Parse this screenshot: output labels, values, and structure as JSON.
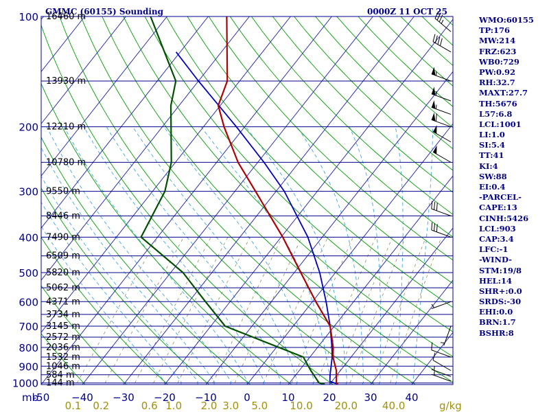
{
  "chart_data": {
    "type": "skew-t",
    "title_left": "GMMC (60155) Sounding",
    "title_right": "0000Z 11 OCT 25",
    "pressure_axis_label": "mb",
    "mixing_ratio_unit": "g/kg",
    "pressure_ticks": [
      100,
      200,
      300,
      400,
      500,
      600,
      700,
      800,
      900,
      1000
    ],
    "temperature_ticks": [
      -50,
      -40,
      -30,
      -20,
      -10,
      0,
      10,
      20,
      30,
      40
    ],
    "temperature_tick_labels": [
      "-50",
      "−40",
      "−30",
      "−20",
      "−10",
      "0",
      "10",
      "20",
      "30",
      "40"
    ],
    "mixing_ratio_labels": [
      "0.1",
      "0.2",
      "0.6",
      "1.0",
      "2.0",
      "3.0",
      "5.0",
      "10.0",
      "20.0",
      "40.0"
    ],
    "height_labels": [
      {
        "p": 100,
        "label": "16460 m"
      },
      {
        "p": 150,
        "label": "13930 m"
      },
      {
        "p": 200,
        "label": "12210 m"
      },
      {
        "p": 250,
        "label": "10780 m"
      },
      {
        "p": 300,
        "label": "9550 m"
      },
      {
        "p": 350,
        "label": "8446 m"
      },
      {
        "p": 400,
        "label": "7490 m"
      },
      {
        "p": 450,
        "label": "6509 m"
      },
      {
        "p": 500,
        "label": "5820 m"
      },
      {
        "p": 550,
        "label": "5062 m"
      },
      {
        "p": 600,
        "label": "4371 m"
      },
      {
        "p": 650,
        "label": "3734 m"
      },
      {
        "p": 700,
        "label": "3145 m"
      },
      {
        "p": 750,
        "label": "2572 m"
      },
      {
        "p": 800,
        "label": "2036 m"
      },
      {
        "p": 850,
        "label": "1532 m"
      },
      {
        "p": 900,
        "label": "1046 m"
      },
      {
        "p": 950,
        "label": "584 m"
      },
      {
        "p": 1000,
        "label": "144 m"
      }
    ],
    "temperature_profile": [
      {
        "p": 1008,
        "t": 22.0
      },
      {
        "p": 1000,
        "t": 21.4
      },
      {
        "p": 925,
        "t": 19.0
      },
      {
        "p": 850,
        "t": 15.6
      },
      {
        "p": 800,
        "t": 13.8
      },
      {
        "p": 700,
        "t": 9.0
      },
      {
        "p": 600,
        "t": 0.8
      },
      {
        "p": 500,
        "t": -8.4
      },
      {
        "p": 400,
        "t": -19.6
      },
      {
        "p": 300,
        "t": -35.0
      },
      {
        "p": 250,
        "t": -44.8
      },
      {
        "p": 200,
        "t": -55.0
      },
      {
        "p": 175,
        "t": -60.5
      },
      {
        "p": 150,
        "t": -63.0
      },
      {
        "p": 100,
        "t": -75.5
      }
    ],
    "dewpoint_profile": [
      {
        "p": 1008,
        "t": 18.8
      },
      {
        "p": 1000,
        "t": 17.2
      },
      {
        "p": 925,
        "t": 12.8
      },
      {
        "p": 850,
        "t": 8.4
      },
      {
        "p": 700,
        "t": -16.5
      },
      {
        "p": 600,
        "t": -26.0
      },
      {
        "p": 500,
        "t": -37.0
      },
      {
        "p": 400,
        "t": -54.0
      },
      {
        "p": 300,
        "t": -57.0
      },
      {
        "p": 250,
        "t": -61.0
      },
      {
        "p": 175,
        "t": -72.0
      },
      {
        "p": 150,
        "t": -75.5
      },
      {
        "p": 100,
        "t": -94.0
      }
    ],
    "parcel_path": [
      {
        "p": 1008,
        "t": 22.0
      },
      {
        "p": 990,
        "t": 19.5
      },
      {
        "p": 950,
        "t": 18.3
      },
      {
        "p": 900,
        "t": 16.9
      },
      {
        "p": 850,
        "t": 15.4
      },
      {
        "p": 800,
        "t": 13.5
      },
      {
        "p": 700,
        "t": 9.0
      },
      {
        "p": 600,
        "t": 3.3
      },
      {
        "p": 500,
        "t": -3.8
      },
      {
        "p": 400,
        "t": -13.5
      },
      {
        "p": 300,
        "t": -28.0
      },
      {
        "p": 250,
        "t": -38.5
      },
      {
        "p": 200,
        "t": -52.0
      },
      {
        "p": 150,
        "t": -70.0
      },
      {
        "p": 125,
        "t": -81.0
      }
    ],
    "wind_barbs": [
      {
        "p": 990,
        "dir": 290,
        "kt": 5
      },
      {
        "p": 960,
        "dir": 290,
        "kt": 5
      },
      {
        "p": 925,
        "dir": 300,
        "kt": 10
      },
      {
        "p": 850,
        "dir": 290,
        "kt": 10
      },
      {
        "p": 700,
        "dir": 200,
        "kt": 5
      },
      {
        "p": 600,
        "dir": 250,
        "kt": 5
      },
      {
        "p": 400,
        "dir": 290,
        "kt": 30
      },
      {
        "p": 350,
        "dir": 290,
        "kt": 30
      },
      {
        "p": 250,
        "dir": 300,
        "kt": 50
      },
      {
        "p": 220,
        "dir": 300,
        "kt": 50
      },
      {
        "p": 200,
        "dir": 290,
        "kt": 60
      },
      {
        "p": 185,
        "dir": 290,
        "kt": 55
      },
      {
        "p": 170,
        "dir": 290,
        "kt": 55
      },
      {
        "p": 150,
        "dir": 290,
        "kt": 55
      },
      {
        "p": 125,
        "dir": 300,
        "kt": 40
      },
      {
        "p": 110,
        "dir": 310,
        "kt": 35
      }
    ],
    "series_colors": {
      "temperature": "#b00000",
      "dewpoint": "#005000",
      "parcel": "#0000c0",
      "isobar": "#00008b",
      "isotherm": "#3030b0",
      "dry_adiabat": "#00a000",
      "moist_adiabat": "#40a8e0",
      "mixing_ratio": "#909060"
    }
  },
  "indices": [
    "WMO:60155",
    "TP:176",
    "MW:214",
    "FRZ:623",
    "WB0:729",
    "PW:0.92",
    "RH:32.7",
    "MAXT:27.7",
    "TH:5676",
    "L57:6.8",
    "LCL:1001",
    "LI:1.0",
    "SI:5.4",
    "TT:41",
    "KI:4",
    "SW:88",
    "EI:0.4",
    "-PARCEL-",
    "CAPE:13",
    "CINH:5426",
    "LCL:903",
    "CAP:3.4",
    "LFC:-1",
    "-WIND-",
    "STM:19/8",
    "HEL:14",
    "SHR+:0.0",
    "SRDS:-30",
    "EHI:0.0",
    "BRN:1.7",
    "BSHR:8"
  ]
}
